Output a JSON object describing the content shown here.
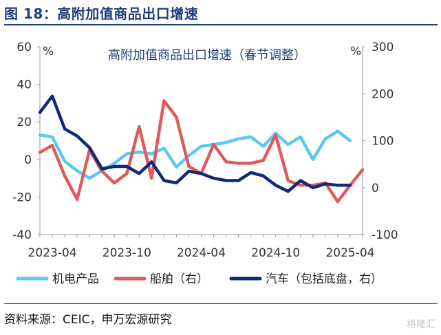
{
  "figure_title": "图 18：高附加值商品出口增速",
  "source_text": "资料来源：CEIC，申万宏源研究",
  "watermark_text": "格隆汇",
  "chart_data": {
    "type": "line",
    "title": "高附加值商品出口增速（春节调整）",
    "left_unit": "%",
    "right_unit": "%",
    "x_tick_labels": [
      "2023-04",
      "2023-10",
      "2024-04",
      "2024-10",
      "2025-04"
    ],
    "y_left": {
      "ylim": [
        -40,
        60
      ],
      "ticks": [
        -40,
        -20,
        0,
        20,
        40,
        60
      ]
    },
    "y_right": {
      "ylim": [
        -100,
        300
      ],
      "ticks": [
        -100,
        0,
        100,
        200,
        300
      ]
    },
    "grid": false,
    "legend_position": "bottom",
    "x_months": [
      "2023-03",
      "2023-04",
      "2023-05",
      "2023-06",
      "2023-07",
      "2023-08",
      "2023-09",
      "2023-10",
      "2023-11",
      "2023-12",
      "2024-01",
      "2024-02",
      "2024-03",
      "2024-04",
      "2024-05",
      "2024-06",
      "2024-07",
      "2024-08",
      "2024-09",
      "2024-10",
      "2024-11",
      "2024-12",
      "2025-01",
      "2025-02",
      "2025-03",
      "2025-04",
      "2025-05"
    ],
    "series": [
      {
        "name": "机电产品",
        "axis": "left",
        "color": "#5bc8f0",
        "values": [
          13,
          12,
          -1,
          -6,
          -10,
          -6,
          -2,
          3,
          4,
          3,
          6,
          -4,
          2,
          7,
          8,
          9,
          11,
          12,
          7,
          14,
          8,
          12,
          0,
          11,
          15,
          10,
          null
        ]
      },
      {
        "name": "船舶（右）",
        "axis": "right",
        "color": "#e05a5a",
        "values": [
          75,
          90,
          25,
          -25,
          80,
          35,
          10,
          30,
          130,
          20,
          185,
          150,
          45,
          30,
          92,
          55,
          52,
          52,
          58,
          112,
          15,
          5,
          5,
          10,
          -30,
          5,
          38
        ]
      },
      {
        "name": "汽车（包括底盘，右）",
        "axis": "right",
        "color": "#0f2a7a",
        "values": [
          160,
          195,
          125,
          110,
          85,
          40,
          45,
          45,
          30,
          55,
          15,
          10,
          35,
          30,
          20,
          15,
          15,
          32,
          25,
          5,
          -8,
          15,
          0,
          8,
          5,
          5,
          null
        ]
      }
    ]
  }
}
